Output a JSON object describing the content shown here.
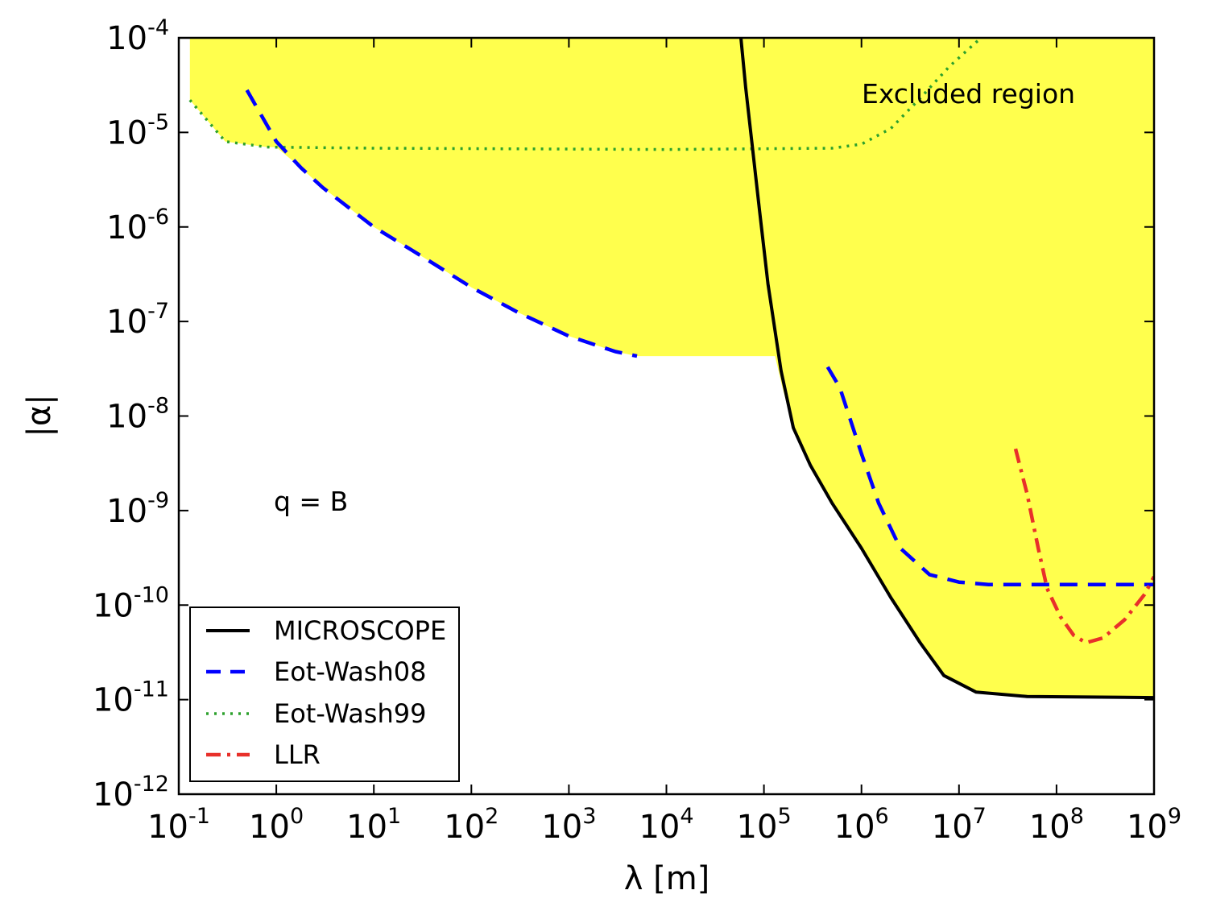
{
  "chart_data": {
    "type": "line",
    "xlabel": "λ [m]",
    "ylabel": "|α|",
    "x_scale": "log",
    "y_scale": "log",
    "xlim": [
      0.1,
      1000000000
    ],
    "ylim": [
      1e-12,
      0.0001
    ],
    "grid": false,
    "x_ticks": [
      {
        "base": "10",
        "exp": "-1",
        "value": 0.1
      },
      {
        "base": "10",
        "exp": "0",
        "value": 1
      },
      {
        "base": "10",
        "exp": "1",
        "value": 10
      },
      {
        "base": "10",
        "exp": "2",
        "value": 100
      },
      {
        "base": "10",
        "exp": "3",
        "value": 1000
      },
      {
        "base": "10",
        "exp": "4",
        "value": 10000
      },
      {
        "base": "10",
        "exp": "5",
        "value": 100000
      },
      {
        "base": "10",
        "exp": "6",
        "value": 1000000
      },
      {
        "base": "10",
        "exp": "7",
        "value": 10000000
      },
      {
        "base": "10",
        "exp": "8",
        "value": 100000000
      },
      {
        "base": "10",
        "exp": "9",
        "value": 1000000000
      }
    ],
    "y_ticks": [
      {
        "base": "10",
        "exp": "-4",
        "value": 0.0001
      },
      {
        "base": "10",
        "exp": "-5",
        "value": 1e-05
      },
      {
        "base": "10",
        "exp": "-6",
        "value": 1e-06
      },
      {
        "base": "10",
        "exp": "-7",
        "value": 1e-07
      },
      {
        "base": "10",
        "exp": "-8",
        "value": 1e-08
      },
      {
        "base": "10",
        "exp": "-9",
        "value": 1e-09
      },
      {
        "base": "10",
        "exp": "-10",
        "value": 1e-10
      },
      {
        "base": "10",
        "exp": "-11",
        "value": 1e-11
      },
      {
        "base": "10",
        "exp": "-12",
        "value": 1e-12
      }
    ],
    "annotations": [
      {
        "text": "Excluded region",
        "x": 50000000,
        "y": 2e-05
      },
      {
        "text": "q = B",
        "x": 3,
        "y": 1e-09
      }
    ],
    "legend_position": "lower-left",
    "excluded_region": {
      "label": "Excluded region",
      "color": "#ffff4d",
      "boundary": [
        [
          0.13,
          0.0001
        ],
        [
          0.13,
          2.2e-05
        ],
        [
          0.3,
          8e-06
        ],
        [
          0.8,
          7e-06
        ],
        [
          1.0,
          7e-06
        ],
        [
          1.8,
          4.2e-06
        ],
        [
          3,
          2.6e-06
        ],
        [
          10,
          1e-06
        ],
        [
          30,
          5e-07
        ],
        [
          100,
          2.3e-07
        ],
        [
          300,
          1.25e-07
        ],
        [
          1000,
          7e-08
        ],
        [
          3000,
          4.8e-08
        ],
        [
          5000,
          4.3e-08
        ],
        [
          130000,
          4.3e-08
        ],
        [
          155000,
          2e-08
        ],
        [
          200000,
          7.5e-09
        ],
        [
          300000,
          3e-09
        ],
        [
          500000,
          1.2e-09
        ],
        [
          1000000,
          4e-10
        ],
        [
          2000000,
          1.2e-10
        ],
        [
          4000000,
          4e-11
        ],
        [
          7000000,
          1.8e-11
        ],
        [
          15000000,
          1.2e-11
        ],
        [
          50000000,
          1.08e-11
        ],
        [
          1000000000,
          1.05e-11
        ],
        [
          1000000000,
          0.0001
        ]
      ]
    },
    "series": [
      {
        "name": "MICROSCOPE",
        "color": "#000000",
        "style": "solid",
        "points": [
          [
            58000,
            0.0001
          ],
          [
            65000,
            3e-05
          ],
          [
            75000,
            8e-06
          ],
          [
            90000,
            1.5e-06
          ],
          [
            110000,
            2.5e-07
          ],
          [
            150000,
            3e-08
          ],
          [
            200000,
            7.5e-09
          ],
          [
            300000,
            3e-09
          ],
          [
            500000,
            1.2e-09
          ],
          [
            1000000,
            4e-10
          ],
          [
            2000000,
            1.2e-10
          ],
          [
            4000000,
            4e-11
          ],
          [
            7000000,
            1.8e-11
          ],
          [
            15000000,
            1.2e-11
          ],
          [
            50000000,
            1.08e-11
          ],
          [
            1000000000,
            1.05e-11
          ]
        ]
      },
      {
        "name": "Eot-Wash08",
        "color": "#0000ff",
        "style": "dashed",
        "segments": [
          [
            [
              0.5,
              2.8e-05
            ],
            [
              1.0,
              8e-06
            ],
            [
              1.8,
              4.2e-06
            ],
            [
              3,
              2.6e-06
            ],
            [
              10,
              1e-06
            ],
            [
              30,
              5e-07
            ],
            [
              100,
              2.3e-07
            ],
            [
              300,
              1.25e-07
            ],
            [
              1000,
              7e-08
            ],
            [
              3000,
              4.8e-08
            ],
            [
              5000,
              4.3e-08
            ]
          ],
          [
            [
              450000,
              3.3e-08
            ],
            [
              600000,
              2e-08
            ],
            [
              1000000,
              4e-09
            ],
            [
              1500000,
              1.2e-09
            ],
            [
              2500000,
              4e-10
            ],
            [
              5000000,
              2.1e-10
            ],
            [
              10000000,
              1.75e-10
            ],
            [
              20000000,
              1.65e-10
            ],
            [
              1000000000,
              1.65e-10
            ]
          ]
        ]
      },
      {
        "name": "Eot-Wash99",
        "color": "#2ca02c",
        "style": "dotted",
        "points": [
          [
            0.13,
            2.2e-05
          ],
          [
            0.3,
            8e-06
          ],
          [
            0.8,
            7e-06
          ],
          [
            10,
            6.8e-06
          ],
          [
            10000,
            6.6e-06
          ],
          [
            500000,
            6.8e-06
          ],
          [
            1000000,
            7.5e-06
          ],
          [
            2000000,
            1.1e-05
          ],
          [
            4000000,
            2.3e-05
          ],
          [
            8000000,
            5e-05
          ],
          [
            15000000,
            9e-05
          ],
          [
            17000000,
            0.0001
          ]
        ]
      },
      {
        "name": "LLR",
        "color": "#e8302a",
        "style": "dashdot",
        "points": [
          [
            38000000,
            4.5e-09
          ],
          [
            50000000,
            1.5e-09
          ],
          [
            65000000,
            4e-10
          ],
          [
            80000000,
            1.5e-10
          ],
          [
            110000000,
            7.5e-11
          ],
          [
            150000000,
            4.8e-11
          ],
          [
            200000000,
            4e-11
          ],
          [
            300000000,
            4.5e-11
          ],
          [
            500000000,
            7e-11
          ],
          [
            800000000,
            1.3e-10
          ],
          [
            1000000000,
            2e-10
          ]
        ]
      }
    ]
  }
}
